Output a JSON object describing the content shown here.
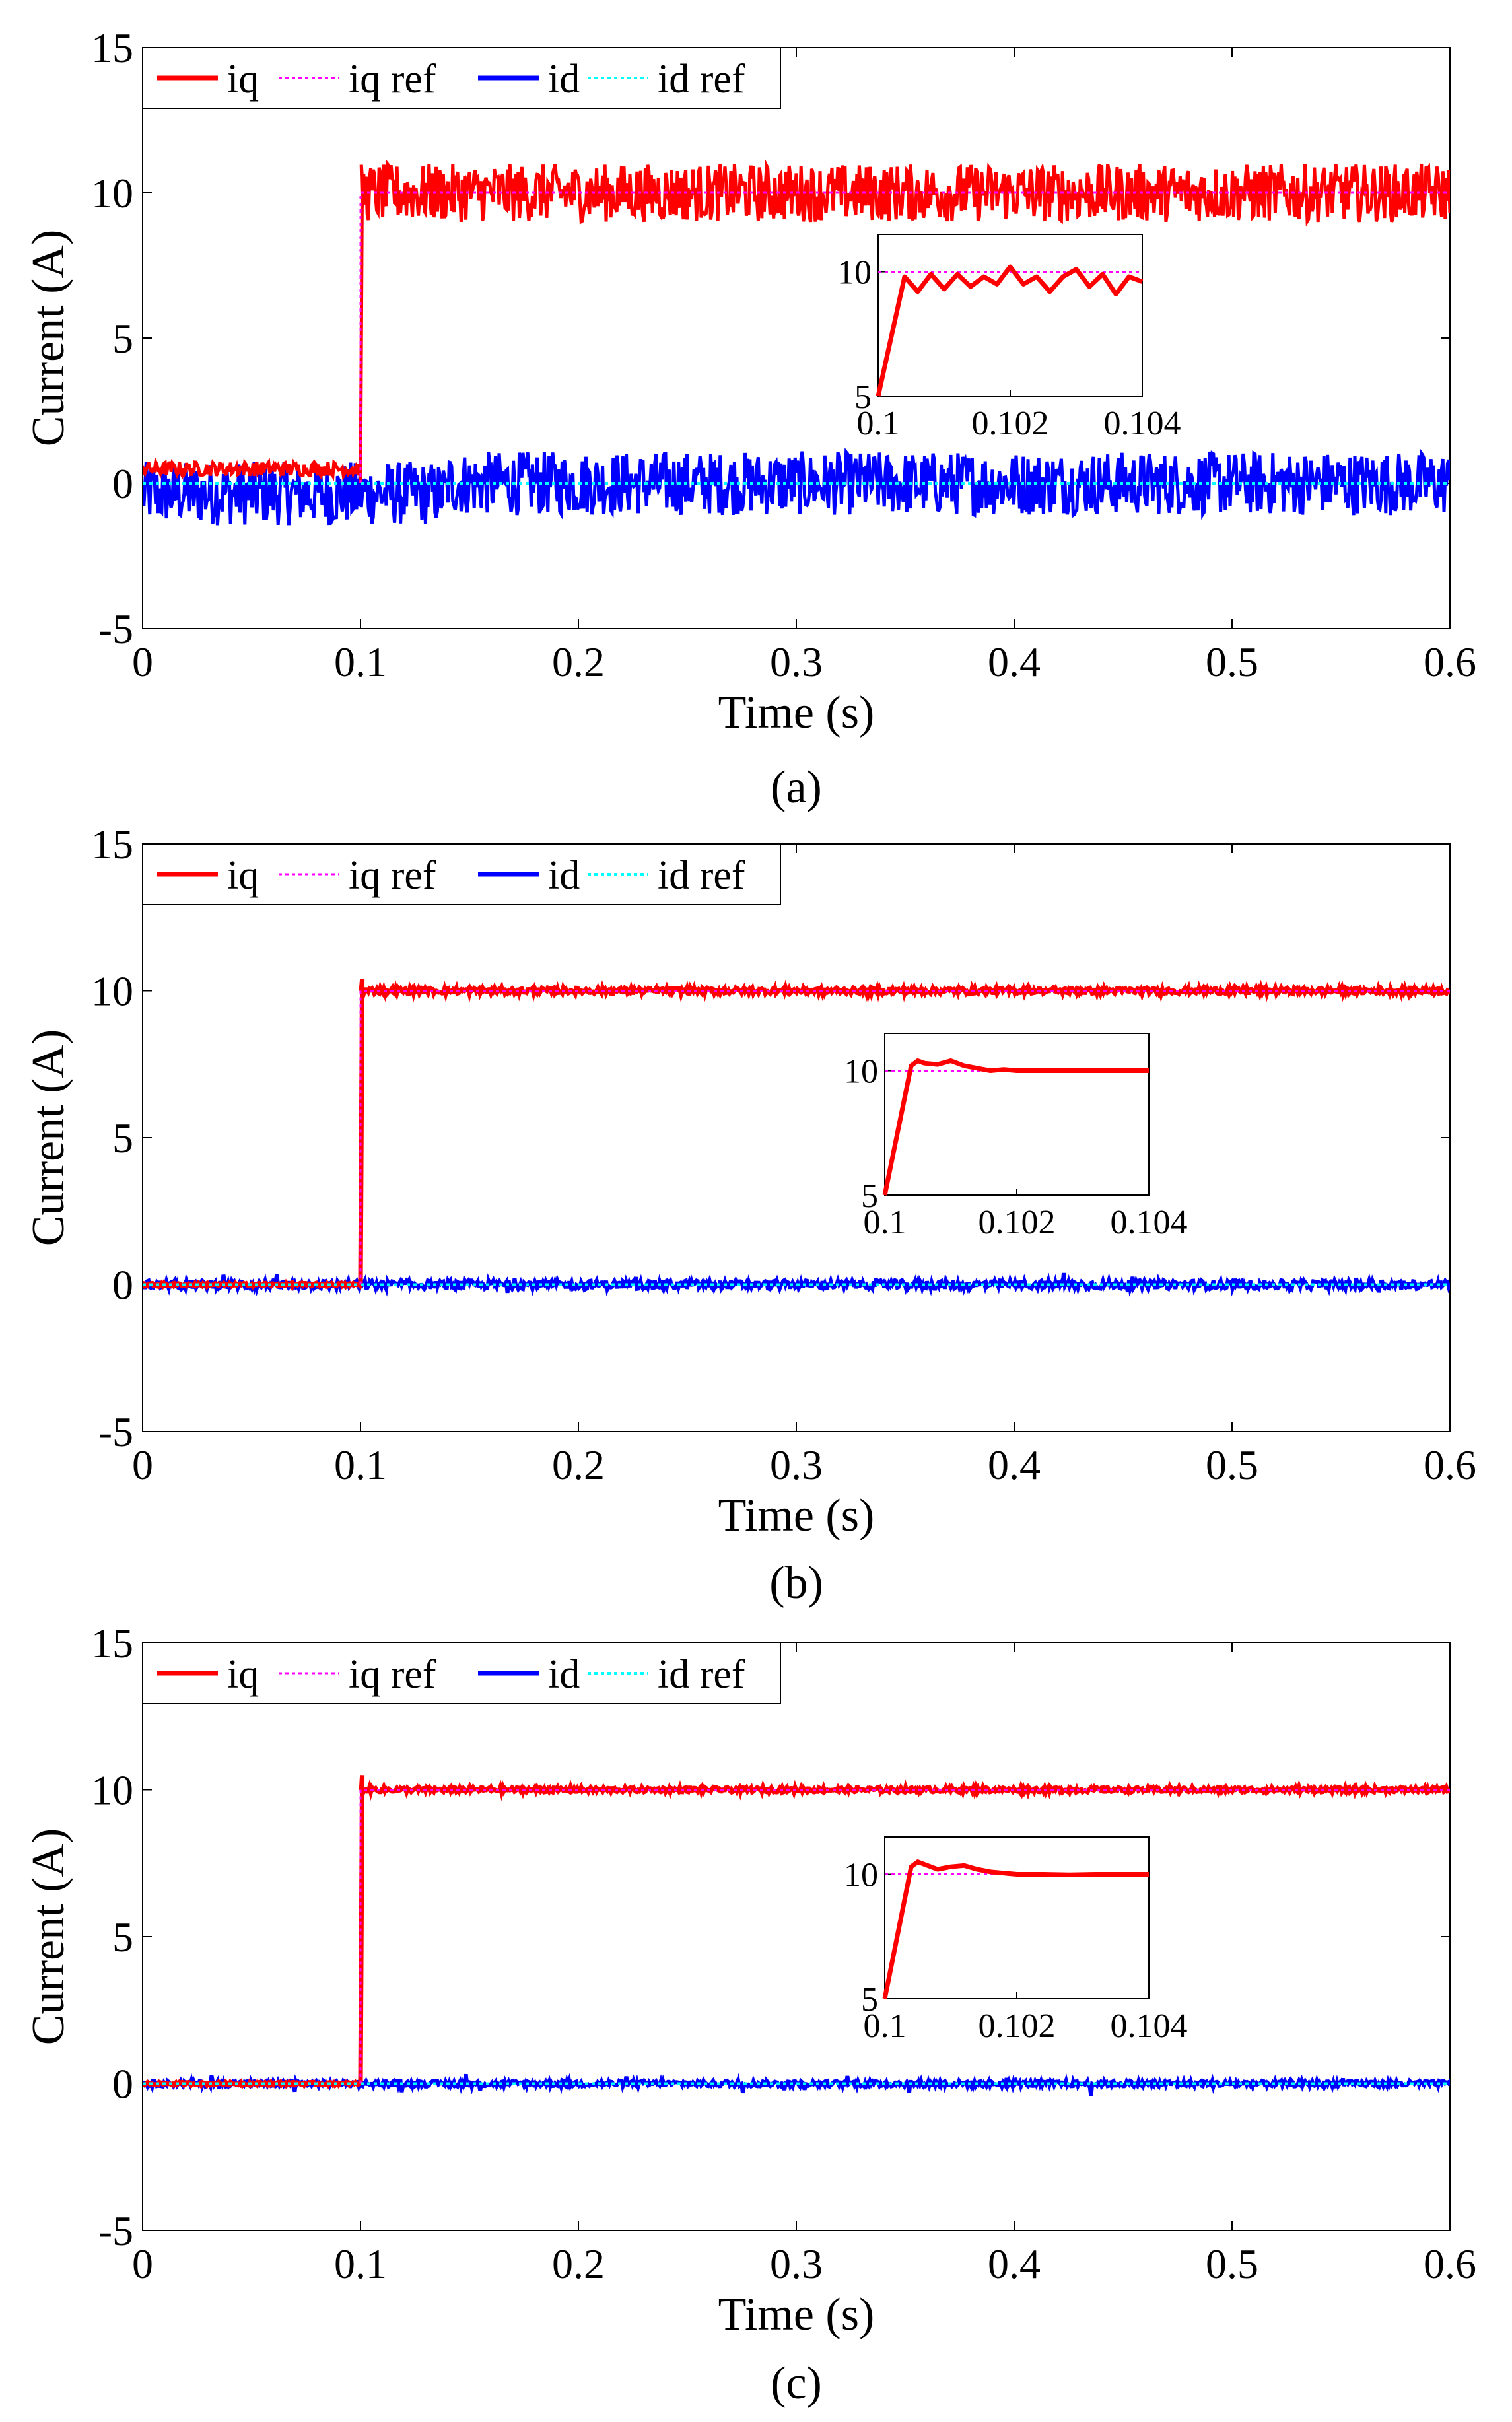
{
  "chart_data": [
    {
      "type": "line",
      "caption": "(a)",
      "xlabel": "Time (s)",
      "ylabel": "Current (A)",
      "xlim": [
        0,
        0.6
      ],
      "ylim": [
        -5,
        15
      ],
      "x_ticks": [
        "0",
        "0.1",
        "0.2",
        "0.3",
        "0.4",
        "0.5",
        "0.6"
      ],
      "y_ticks": [
        "-5",
        "0",
        "5",
        "10",
        "15"
      ],
      "legend": [
        "iq",
        "iq ref",
        "id",
        "id ref"
      ],
      "series": [
        {
          "name": "iq",
          "color": "#ff0000",
          "style": "solid",
          "step_time": 0.1,
          "value_before": 0.5,
          "value_after": 10,
          "noise_amplitude": 1.0
        },
        {
          "name": "iq ref",
          "color": "#ff00ff",
          "style": "dotted",
          "step_time": 0.1,
          "value_before": 0,
          "value_after": 10
        },
        {
          "name": "id",
          "color": "#0000ff",
          "style": "solid",
          "value": 0,
          "noise_amplitude": 1.1
        },
        {
          "name": "id ref",
          "color": "#00ffff",
          "style": "dotted",
          "value": 0
        }
      ],
      "inset": {
        "xlim": [
          0.1,
          0.104
        ],
        "ylim": [
          5,
          11.5
        ],
        "x_ticks": [
          "0.1",
          "0.102",
          "0.104"
        ],
        "y_ticks": [
          "5",
          "10"
        ],
        "iq_x": [
          0.1,
          0.1004,
          0.1006,
          0.1008,
          0.101,
          0.1012,
          0.1014,
          0.1016,
          0.1018,
          0.102,
          0.1022,
          0.1024,
          0.1026,
          0.1028,
          0.103,
          0.1032,
          0.1034,
          0.1036,
          0.1038,
          0.104
        ],
        "iq_y": [
          5,
          9.8,
          9.2,
          9.9,
          9.3,
          9.9,
          9.4,
          9.8,
          9.5,
          10.2,
          9.5,
          9.8,
          9.2,
          9.8,
          10.1,
          9.4,
          9.9,
          9.1,
          9.8,
          9.6
        ],
        "ref": 10
      }
    },
    {
      "type": "line",
      "caption": "(b)",
      "xlabel": "Time (s)",
      "ylabel": "Current (A)",
      "xlim": [
        0,
        0.6
      ],
      "ylim": [
        -5,
        15
      ],
      "x_ticks": [
        "0",
        "0.1",
        "0.2",
        "0.3",
        "0.4",
        "0.5",
        "0.6"
      ],
      "y_ticks": [
        "-5",
        "0",
        "5",
        "10",
        "15"
      ],
      "legend": [
        "iq",
        "iq ref",
        "id",
        "id ref"
      ],
      "series": [
        {
          "name": "iq",
          "color": "#ff0000",
          "style": "solid",
          "step_time": 0.1,
          "value_before": 0,
          "value_after": 10,
          "overshoot": 10.4,
          "noise_amplitude": 0.1
        },
        {
          "name": "iq ref",
          "color": "#ff00ff",
          "style": "dotted",
          "step_time": 0.1,
          "value_before": 0,
          "value_after": 10
        },
        {
          "name": "id",
          "color": "#0000ff",
          "style": "solid",
          "value": 0,
          "noise_amplitude": 0.15
        },
        {
          "name": "id ref",
          "color": "#00ffff",
          "style": "dotted",
          "value": 0
        }
      ],
      "inset": {
        "xlim": [
          0.1,
          0.104
        ],
        "ylim": [
          5,
          11.5
        ],
        "x_ticks": [
          "0.1",
          "0.102",
          "0.104"
        ],
        "y_ticks": [
          "5",
          "10"
        ],
        "iq_x": [
          0.1,
          0.1004,
          0.1005,
          0.1006,
          0.1008,
          0.101,
          0.1012,
          0.1014,
          0.1016,
          0.1018,
          0.102,
          0.1024,
          0.1028,
          0.1032,
          0.1036,
          0.104
        ],
        "iq_y": [
          5,
          10.2,
          10.4,
          10.3,
          10.25,
          10.4,
          10.2,
          10.1,
          10.0,
          10.05,
          10.0,
          10.0,
          10.0,
          10.0,
          10.0,
          10.0
        ],
        "ref": 10
      }
    },
    {
      "type": "line",
      "caption": "(c)",
      "xlabel": "Time (s)",
      "ylabel": "Current (A)",
      "xlim": [
        0,
        0.6
      ],
      "ylim": [
        -5,
        15
      ],
      "x_ticks": [
        "0",
        "0.1",
        "0.2",
        "0.3",
        "0.4",
        "0.5",
        "0.6"
      ],
      "y_ticks": [
        "-5",
        "0",
        "5",
        "10",
        "15"
      ],
      "legend": [
        "iq",
        "iq ref",
        "id",
        "id ref"
      ],
      "series": [
        {
          "name": "iq",
          "color": "#ff0000",
          "style": "solid",
          "step_time": 0.1,
          "value_before": 0,
          "value_after": 10,
          "overshoot": 10.5,
          "noise_amplitude": 0.08
        },
        {
          "name": "iq ref",
          "color": "#ff00ff",
          "style": "dotted",
          "step_time": 0.1,
          "value_before": 0,
          "value_after": 10
        },
        {
          "name": "id",
          "color": "#0000ff",
          "style": "solid",
          "value": 0,
          "noise_amplitude": 0.1
        },
        {
          "name": "id ref",
          "color": "#00ffff",
          "style": "dotted",
          "value": 0
        }
      ],
      "inset": {
        "xlim": [
          0.1,
          0.104
        ],
        "ylim": [
          5,
          11.5
        ],
        "x_ticks": [
          "0.1",
          "0.102",
          "0.104"
        ],
        "y_ticks": [
          "5",
          "10"
        ],
        "iq_x": [
          0.1,
          0.1004,
          0.1005,
          0.1006,
          0.1008,
          0.101,
          0.1012,
          0.1014,
          0.1016,
          0.1018,
          0.102,
          0.1024,
          0.1028,
          0.1032,
          0.1036,
          0.104
        ],
        "iq_y": [
          5,
          10.3,
          10.5,
          10.4,
          10.2,
          10.3,
          10.35,
          10.2,
          10.1,
          10.05,
          10.0,
          10.0,
          9.98,
          10.0,
          10.0,
          10.0
        ],
        "ref": 10
      }
    }
  ]
}
